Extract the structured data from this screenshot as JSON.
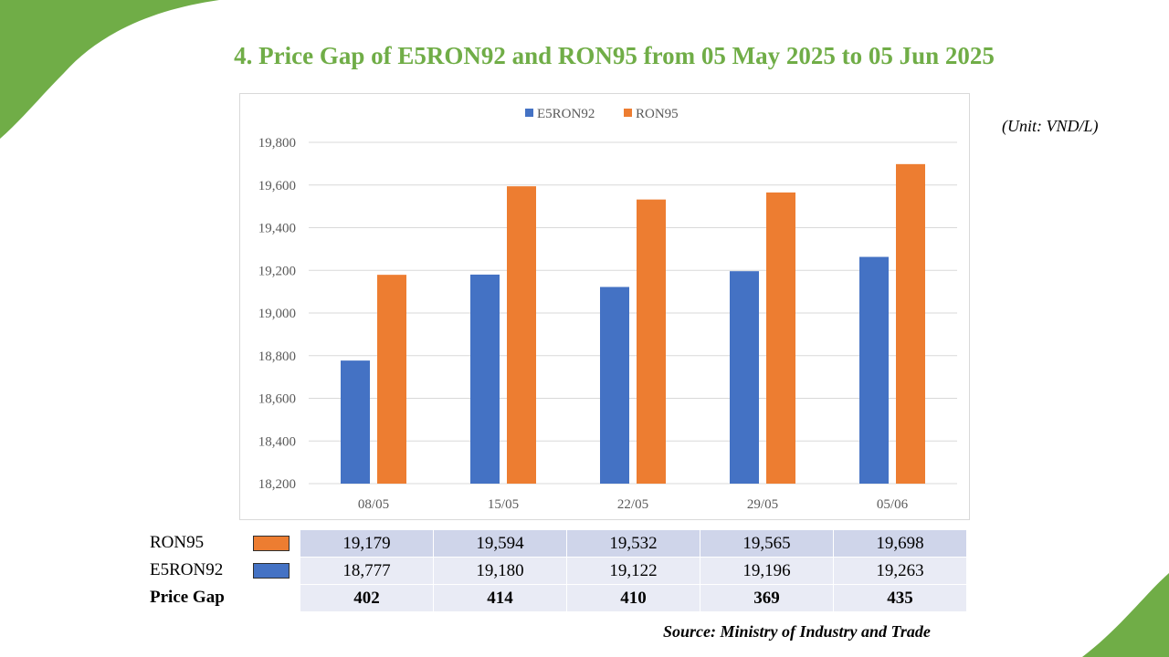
{
  "title": "4. Price Gap of  E5RON92 and RON95 from 05 May 2025 to 05 Jun 2025",
  "unit": "(Unit: VND/L)",
  "source": "Source: Ministry of Industry and Trade",
  "colors": {
    "E5RON92": "#4472c4",
    "RON95": "#ed7d31",
    "accent_green": "#70ad47"
  },
  "chart_data": {
    "type": "bar",
    "categories": [
      "08/05",
      "15/05",
      "22/05",
      "29/05",
      "05/06"
    ],
    "series": [
      {
        "name": "E5RON92",
        "values": [
          18777,
          19180,
          19122,
          19196,
          19263
        ]
      },
      {
        "name": "RON95",
        "values": [
          19179,
          19594,
          19532,
          19565,
          19698
        ]
      }
    ],
    "ylim": [
      18200,
      19800
    ],
    "yticks": [
      18200,
      18400,
      18600,
      18800,
      19000,
      19200,
      19400,
      19600,
      19800
    ],
    "ytick_labels": [
      "18,200",
      "18,400",
      "18,600",
      "18,800",
      "19,000",
      "19,200",
      "19,400",
      "19,600",
      "19,800"
    ],
    "legend": "top",
    "grid": true
  },
  "table": {
    "rows": [
      {
        "label": "RON95",
        "values": [
          "19,179",
          "19,594",
          "19,532",
          "19,565",
          "19,698"
        ]
      },
      {
        "label": "E5RON92",
        "values": [
          "18,777",
          "19,180",
          "19,122",
          "19,196",
          "19,263"
        ]
      },
      {
        "label": "Price Gap",
        "values": [
          "402",
          "414",
          "410",
          "369",
          "435"
        ]
      }
    ]
  }
}
